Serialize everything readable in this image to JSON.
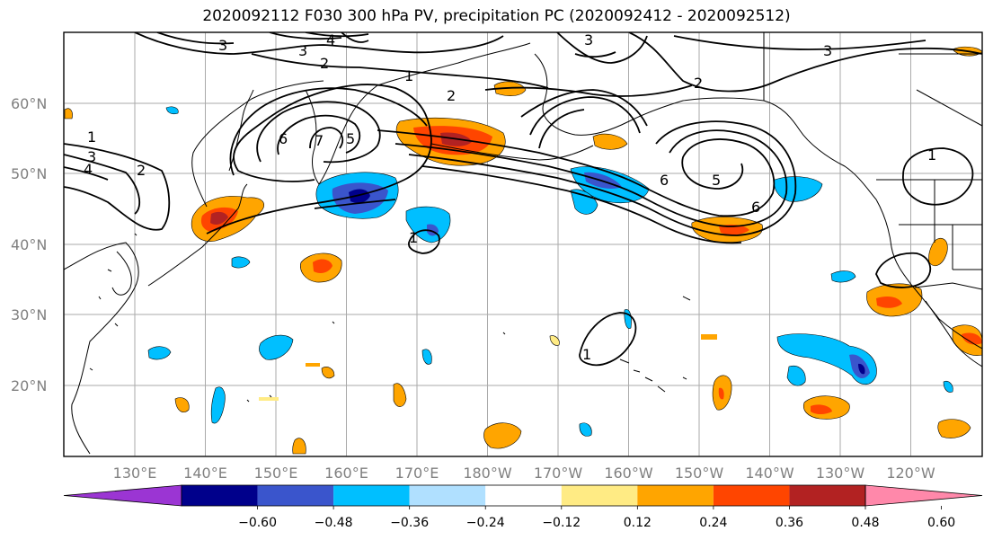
{
  "title": "2020092112 F030 300 hPa PV, precipitation PC (2020092412 - 2020092512)",
  "lat_labels": [
    "60°N",
    "50°N",
    "40°N",
    "30°N",
    "20°N"
  ],
  "lon_labels": [
    "130°E",
    "140°E",
    "150°E",
    "160°E",
    "170°E",
    "180°W",
    "170°W",
    "160°W",
    "150°W",
    "140°W",
    "130°W",
    "120°W"
  ],
  "colorbar": {
    "tick_labels": [
      "−0.60",
      "−0.48",
      "−0.36",
      "−0.24",
      "−0.12",
      "0.12",
      "0.24",
      "0.36",
      "0.48",
      "0.60"
    ],
    "colors": [
      "#9b35d3",
      "#00008b",
      "#3a55cc",
      "#00bfff",
      "#b0e0ff",
      "#ffffff",
      "#ffeb84",
      "#ffa500",
      "#ff4500",
      "#b22222",
      "#ff88aa"
    ]
  },
  "contour_labels": [
    "3",
    "3",
    "4",
    "2",
    "3",
    "3",
    "1",
    "2",
    "2",
    "1",
    "3",
    "4",
    "2",
    "6",
    "7",
    "5",
    "6",
    "5",
    "6",
    "1",
    "1",
    "1"
  ],
  "colors": {
    "grid": "#aaaaaa",
    "coast": "#000000",
    "contour": "#000000"
  }
}
